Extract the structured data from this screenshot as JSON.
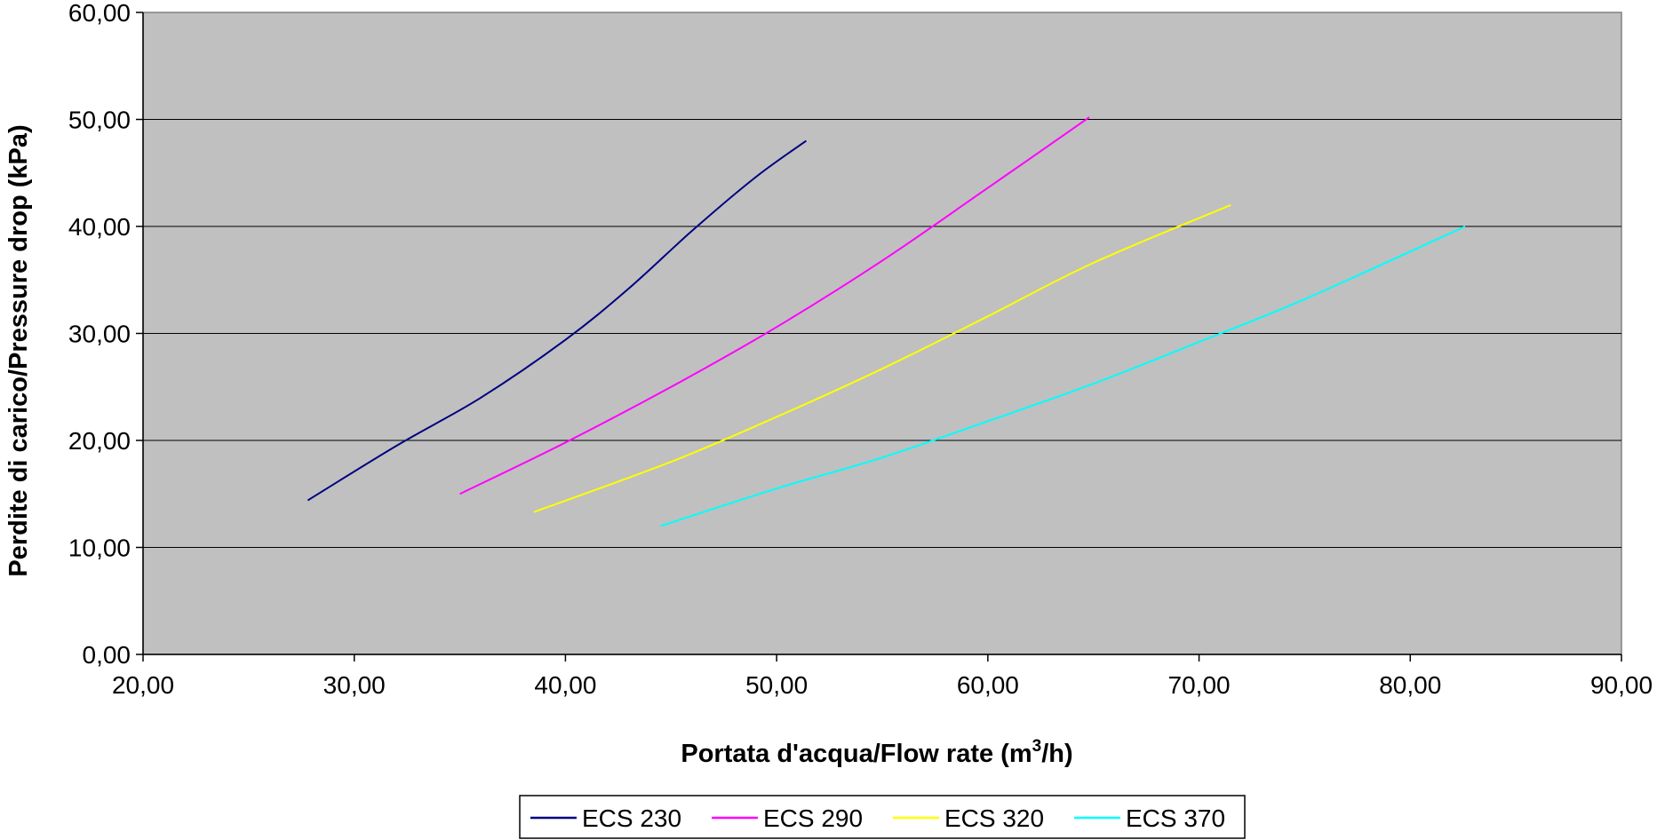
{
  "chart_data": {
    "type": "line",
    "title": "",
    "xlabel": {
      "main": "Portata d'acqua/Flow rate (m",
      "sup": "3",
      "tail": "/h)"
    },
    "ylabel": "Perdite di carico/Pressure drop (kPa)",
    "xlim": [
      20,
      90
    ],
    "ylim": [
      0,
      60
    ],
    "xticks": [
      "20,00",
      "30,00",
      "40,00",
      "50,00",
      "60,00",
      "70,00",
      "80,00",
      "90,00"
    ],
    "yticks": [
      "0,00",
      "10,00",
      "20,00",
      "30,00",
      "40,00",
      "50,00",
      "60,00"
    ],
    "xtick_values": [
      20,
      30,
      40,
      50,
      60,
      70,
      80,
      90
    ],
    "ytick_values": [
      0,
      10,
      20,
      30,
      40,
      50,
      60
    ],
    "grid": "horizontal",
    "plot_background": "#c0c0c0",
    "legend_position": "bottom",
    "series": [
      {
        "name": "ECS 230",
        "color": "#000080",
        "x": [
          27.8,
          32.0,
          36.0,
          40.0,
          43.0,
          46.0,
          49.0,
          51.4
        ],
        "y": [
          14.4,
          19.5,
          24.0,
          29.4,
          34.2,
          39.6,
          44.6,
          48.0
        ]
      },
      {
        "name": "ECS 290",
        "color": "#ff00ff",
        "x": [
          35.0,
          40.0,
          45.0,
          50.0,
          55.0,
          60.0,
          64.8
        ],
        "y": [
          15.0,
          19.8,
          25.0,
          30.6,
          36.8,
          43.6,
          50.2
        ]
      },
      {
        "name": "ECS 320",
        "color": "#ffff00",
        "x": [
          38.5,
          45.0,
          50.0,
          55.0,
          60.0,
          65.0,
          71.5
        ],
        "y": [
          13.3,
          18.0,
          22.2,
          26.7,
          31.6,
          36.6,
          42.0
        ]
      },
      {
        "name": "ECS 370",
        "color": "#00ffff",
        "x": [
          44.5,
          50.0,
          55.0,
          60.0,
          65.0,
          70.0,
          75.0,
          82.6
        ],
        "y": [
          12.0,
          15.5,
          18.4,
          21.8,
          25.3,
          29.2,
          33.2,
          40.0
        ]
      }
    ]
  }
}
